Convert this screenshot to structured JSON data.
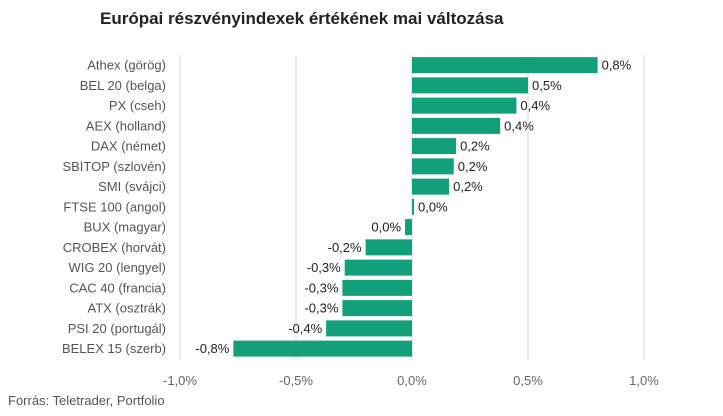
{
  "title": "Európai részvényindexek értékének mai változása",
  "source": "Forrás: Teletrader, Portfolio",
  "colors": {
    "bar": "#11a079",
    "grid": "#d9d9d9"
  },
  "chart_data": {
    "type": "bar",
    "orientation": "horizontal",
    "title": "Európai részvényindexek értékének mai változása",
    "categories": [
      "Athex (görög)",
      "BEL 20 (belga)",
      "PX (cseh)",
      "AEX (holland)",
      "DAX (német)",
      "SBITOP (szlovén)",
      "SMI (svájci)",
      "FTSE 100 (angol)",
      "BUX (magyar)",
      "CROBEX (horvát)",
      "WIG 20 (lengyel)",
      "CAC 40 (francia)",
      "ATX (osztrák)",
      "PSI 20 (portugál)",
      "BELEX 15 (szerb)"
    ],
    "values": [
      0.8,
      0.5,
      0.45,
      0.38,
      0.19,
      0.18,
      0.16,
      0.0,
      -0.03,
      -0.2,
      -0.29,
      -0.3,
      -0.3,
      -0.37,
      -0.77
    ],
    "value_labels": [
      "0,8%",
      "0,5%",
      "0,4%",
      "0,4%",
      "0,2%",
      "0,2%",
      "0,2%",
      "0,0%",
      "0,0%",
      "-0,2%",
      "-0,3%",
      "-0,3%",
      "-0,3%",
      "-0,4%",
      "-0,8%"
    ],
    "xlim": [
      -1.0,
      1.0
    ],
    "xticks": [
      -1.0,
      -0.5,
      0.0,
      0.5,
      1.0
    ],
    "xtick_labels": [
      "-1,0%",
      "-0,5%",
      "0,0%",
      "0,5%",
      "1,0%"
    ],
    "grid": true,
    "legend": "none"
  }
}
